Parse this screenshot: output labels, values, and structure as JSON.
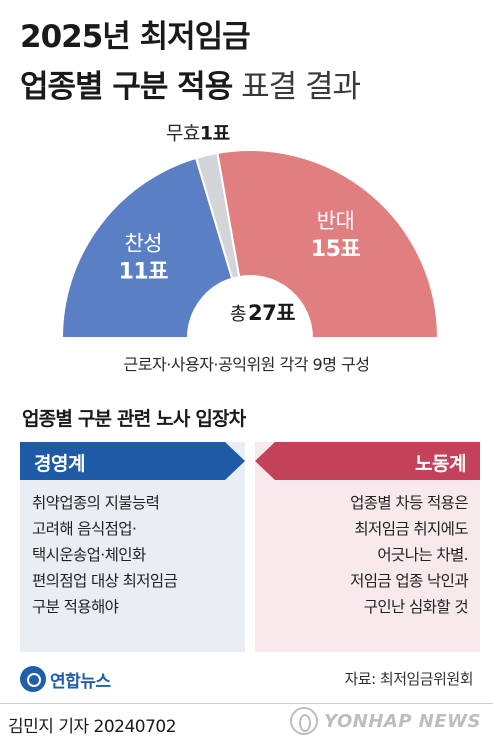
{
  "title": {
    "line1": "2025년 최저임금",
    "line2_bold": "업종별 구분 적용",
    "line2_light": " 표결 결과"
  },
  "chart_data": {
    "type": "pie",
    "shape": "half-donut",
    "slices": [
      {
        "label": "찬성",
        "value": 11,
        "value_label": "11표",
        "color": "#5b7fc4"
      },
      {
        "label": "무효",
        "value": 1,
        "value_label": "1표",
        "color": "#d3d5d9"
      },
      {
        "label": "반대",
        "value": 15,
        "value_label": "15표",
        "color": "#e07e80"
      }
    ],
    "total_prefix": "총",
    "total_label": "27표"
  },
  "composition_note": "근로자·사용자·공익위원 각각 9명 구성",
  "subhead": "업종별 구분 관련 노사 입장차",
  "columns": [
    {
      "heading": "경영계",
      "color": "#1e5aa6",
      "lines": [
        "취약업종의 지불능력",
        "고려해 음식점업·",
        "택시운송업·체인화",
        "편의점업 대상 최저임금",
        "구분 적용해야"
      ]
    },
    {
      "heading": "노동계",
      "color": "#c4415a",
      "lines": [
        "업종별 차등 적용은",
        "최저임금 취지에도",
        "어긋나는 차별.",
        "저임금 업종 낙인과",
        "구인난 심화할 것"
      ]
    }
  ],
  "logo_text": "연합뉴스",
  "source": "자료: 최저임금위원회",
  "byline": "김민지 기자  20240702",
  "watermark": "YONHAP NEWS"
}
